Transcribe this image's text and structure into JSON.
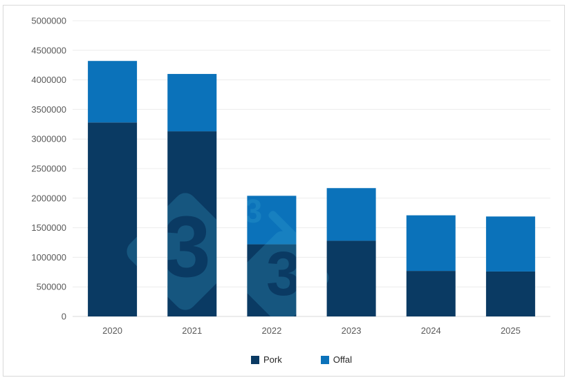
{
  "chart_data": {
    "type": "bar",
    "stacked": true,
    "title": "",
    "xlabel": "",
    "ylabel": "",
    "categories": [
      "2020",
      "2021",
      "2022",
      "2023",
      "2024",
      "2025"
    ],
    "series": [
      {
        "name": "Pork",
        "color": "#0a3a63",
        "values": [
          3280000,
          3130000,
          1220000,
          1280000,
          770000,
          760000
        ]
      },
      {
        "name": "Offal",
        "color": "#0b72ba",
        "values": [
          1040000,
          970000,
          820000,
          890000,
          940000,
          930000
        ]
      }
    ],
    "ylim": [
      0,
      5000000
    ],
    "ytick_step": 500000,
    "yticks": [
      0,
      500000,
      1000000,
      1500000,
      2000000,
      2500000,
      3000000,
      3500000,
      4000000,
      4500000,
      5000000
    ],
    "grid": true,
    "legend_position": "bottom",
    "watermark_glyph": "3"
  },
  "colors": {
    "background": "#ffffff",
    "card_border": "#d9d9d9",
    "gridline": "#ececec",
    "axis_line": "#d9d9d9",
    "tick_text": "#595959",
    "legend_text": "#262626",
    "watermark": "#3caad2"
  }
}
